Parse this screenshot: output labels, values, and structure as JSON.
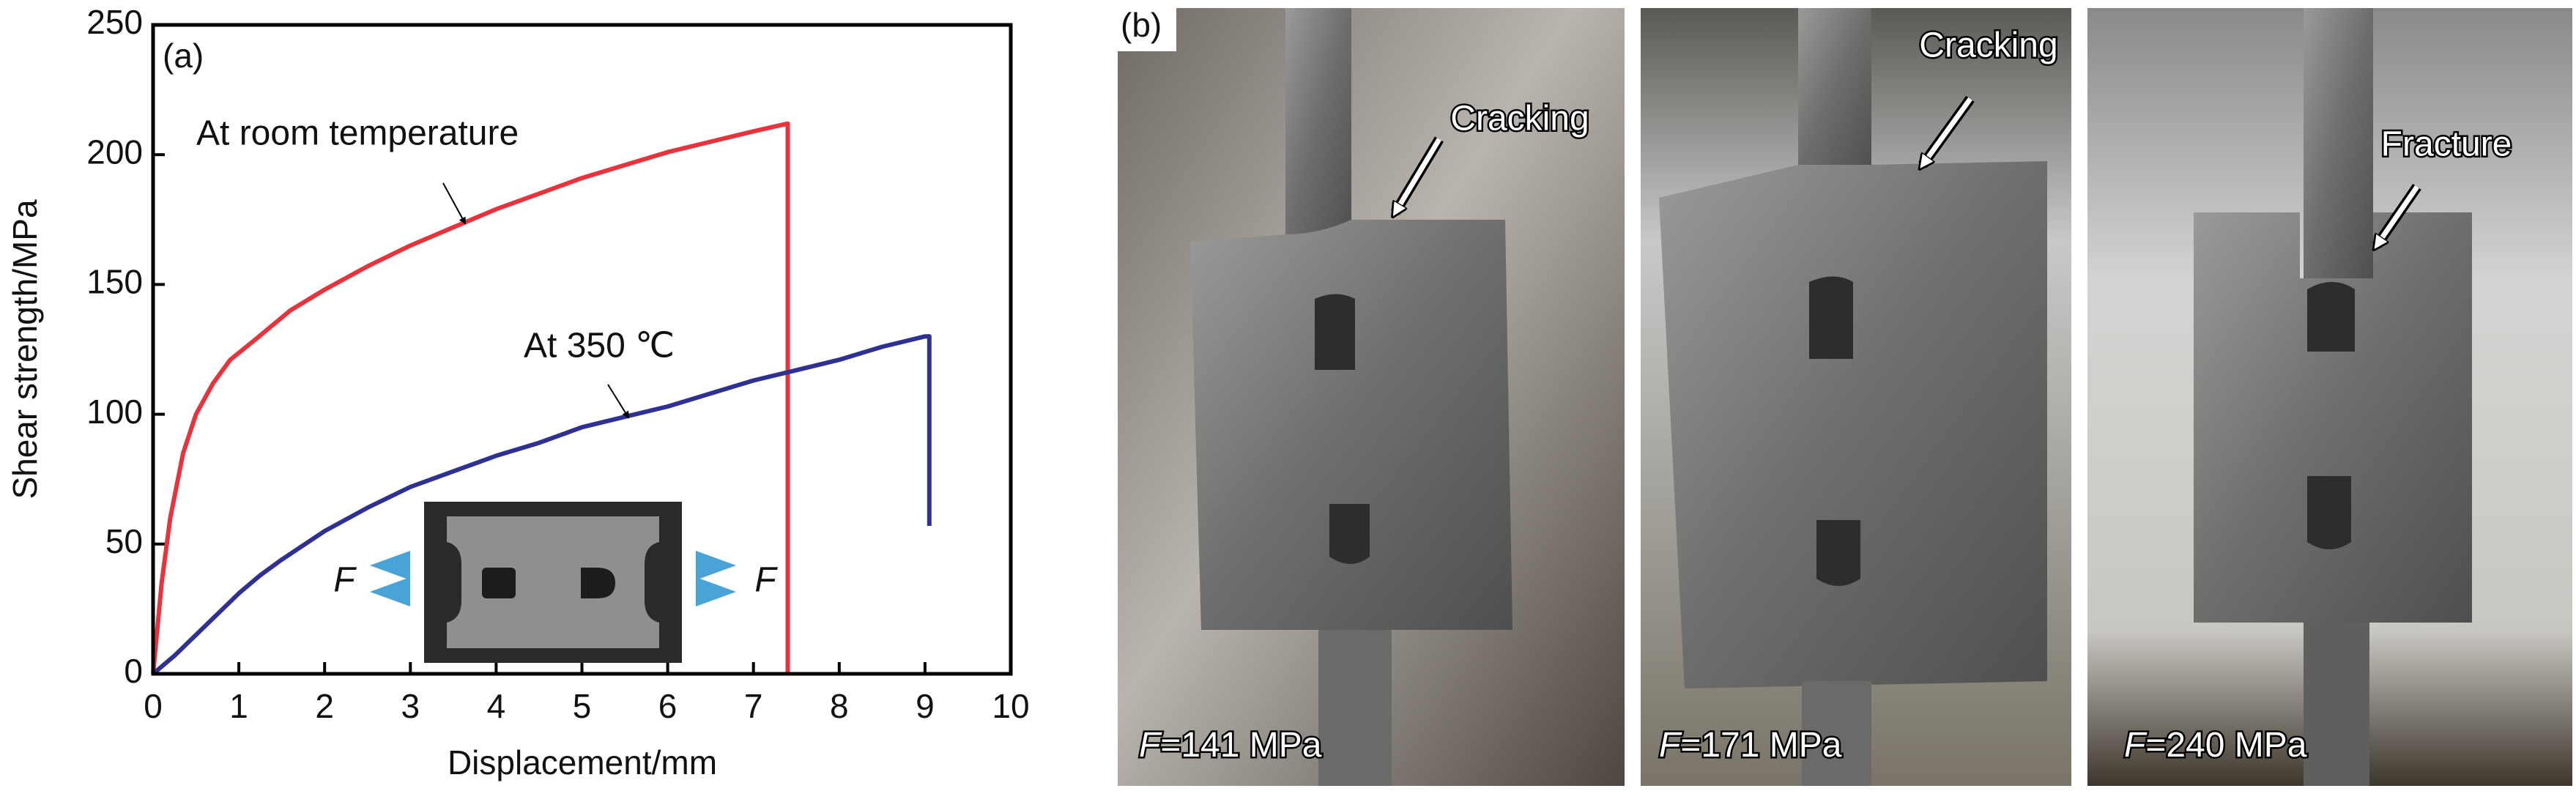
{
  "chart_data": {
    "type": "line",
    "panel_label": "(a)",
    "x_label": "Displacement/mm",
    "y_label": "Shear strength/MPa",
    "xlim": [
      0,
      10
    ],
    "xticks": [
      0,
      1,
      2,
      3,
      4,
      5,
      6,
      7,
      8,
      9,
      10
    ],
    "ylim": [
      0,
      250
    ],
    "yticks": [
      0,
      50,
      100,
      150,
      200,
      250
    ],
    "series": [
      {
        "name": "At room temperature",
        "color": "#e8323c",
        "x": [
          0,
          0.1,
          0.2,
          0.35,
          0.5,
          0.7,
          0.9,
          1.2,
          1.6,
          2,
          2.5,
          3,
          3.5,
          4,
          4.5,
          5,
          5.5,
          6,
          6.5,
          7,
          7.4,
          7.4
        ],
        "values": [
          0,
          35,
          60,
          85,
          100,
          112,
          121,
          129,
          140,
          148,
          157,
          165,
          172,
          179,
          185,
          191,
          196,
          201,
          205,
          209,
          212,
          0
        ]
      },
      {
        "name": "At 350 ℃",
        "color": "#2e3192",
        "x": [
          0,
          0.25,
          0.5,
          0.75,
          1,
          1.25,
          1.5,
          2,
          2.5,
          3,
          3.5,
          4,
          4.5,
          5,
          5.5,
          6,
          6.5,
          7,
          7.5,
          8,
          8.5,
          9,
          9.05,
          9.05
        ],
        "values": [
          0,
          7,
          15,
          23,
          31,
          38,
          44,
          55,
          64,
          72,
          78,
          84,
          89,
          95,
          99,
          103,
          108,
          113,
          117,
          121,
          126,
          130,
          130,
          57
        ]
      }
    ],
    "inset_force_labels": [
      "F",
      "F"
    ]
  },
  "photos": {
    "panel_label": "(b)",
    "panels": [
      {
        "note": "Cracking",
        "force_symbol": "F",
        "force_text": "=141 MPa"
      },
      {
        "note": "Cracking",
        "force_symbol": "F",
        "force_text": "=171 MPa"
      },
      {
        "note": "Fracture",
        "force_symbol": "F",
        "force_text": "=240 MPa"
      }
    ]
  }
}
